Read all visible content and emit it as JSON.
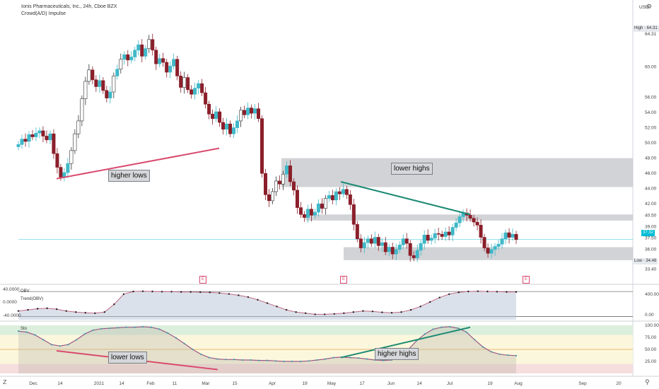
{
  "header": {
    "title": "Ionis Pharmaceuticals, Inc., 24h, Cboe BZX",
    "indicator": "Crowd(A/D) Impulse",
    "currency": "USD"
  },
  "price_tags": {
    "high": "High · 64.31",
    "last": "37.32",
    "low": "Low · 34.48"
  },
  "annotations": {
    "price_higher_lows": "higher lows",
    "price_lower_highs": "lower highs",
    "sto_lower_lows": "lower lows",
    "sto_higher_highs": "higher highs"
  },
  "panes": {
    "obv_label": "OBV",
    "obv_trend_label": "Trend(OBV)",
    "sto_label": "Sto"
  },
  "event_flags": [
    "E",
    "E",
    "E"
  ],
  "icons": {
    "settings": "gear-icon",
    "scale_toggle": "axis-scale-icon",
    "zoom": "magnifier-icon"
  },
  "colors": {
    "up": "#3fb8c8",
    "down": "#8a1f2a",
    "neutral_up": "#ffffff",
    "zone": "#c9cbcf",
    "pink_line": "#d94a6e",
    "teal_line": "#1c8a73",
    "last_price": "#00bcd4",
    "sto_green_band": "#dcefdc",
    "sto_yellow_band": "#fbf7dd",
    "sto_red_band": "#f7dede"
  },
  "chart_data": [
    {
      "type": "candlestick",
      "title": "Ionis Pharmaceuticals, Inc., 24h, Cboe BZX",
      "ylabel": "USD",
      "ylim": [
        33.0,
        66.0
      ],
      "yticks": [
        "64.31",
        "60.00",
        "56.00",
        "54.00",
        "52.00",
        "50.00",
        "48.00",
        "46.00",
        "44.00",
        "42.00",
        "40.50",
        "39.00",
        "37.50",
        "36.00",
        "33.40"
      ],
      "x_ticks": [
        "Dec",
        "14",
        "2021",
        "14",
        "Feb",
        "11",
        "Mar",
        "15",
        "Apr",
        "19",
        "May",
        "17",
        "Jun",
        "14",
        "Jul",
        "19",
        "Aug",
        "Sep",
        "20"
      ],
      "closes": [
        49.8,
        50.5,
        50.2,
        51.1,
        50.8,
        51.3,
        51.6,
        50.9,
        50.4,
        51.2,
        48.6,
        46.8,
        45.5,
        46.1,
        47.3,
        49.0,
        51.2,
        52.9,
        55.8,
        58.1,
        59.6,
        58.3,
        57.4,
        58.2,
        56.9,
        55.9,
        56.7,
        58.8,
        59.7,
        61.0,
        61.6,
        60.9,
        61.3,
        62.2,
        62.9,
        61.4,
        62.4,
        63.6,
        62.2,
        60.4,
        61.1,
        60.6,
        59.3,
        60.1,
        61.0,
        58.8,
        57.3,
        58.6,
        57.0,
        56.4,
        57.2,
        57.8,
        56.6,
        55.1,
        53.8,
        53.2,
        54.1,
        52.7,
        51.8,
        52.5,
        51.2,
        52.0,
        52.9,
        54.3,
        53.7,
        54.6,
        53.9,
        54.5,
        53.2,
        46.0,
        43.2,
        42.4,
        43.6,
        45.0,
        44.6,
        45.9,
        47.0,
        44.9,
        43.8,
        41.5,
        40.6,
        40.2,
        41.3,
        40.5,
        40.9,
        42.0,
        41.4,
        42.7,
        43.1,
        42.5,
        43.6,
        43.3,
        43.9,
        43.2,
        41.9,
        39.3,
        37.4,
        36.2,
        36.9,
        37.4,
        36.8,
        37.6,
        36.5,
        36.9,
        35.7,
        36.3,
        35.4,
        36.0,
        36.6,
        37.4,
        36.8,
        35.2,
        34.9,
        35.9,
        36.8,
        37.9,
        37.2,
        37.5,
        38.1,
        38.0,
        37.7,
        38.3,
        37.9,
        38.9,
        39.5,
        40.3,
        40.8,
        40.5,
        40.1,
        39.6,
        39.2,
        37.6,
        36.2,
        35.5,
        36.0,
        36.4,
        36.7,
        37.4,
        38.2,
        37.6,
        38.0,
        37.3
      ]
    },
    {
      "type": "line",
      "title": "OBV",
      "series": [
        {
          "name": "Trend(OBV)",
          "values": [
            0.1,
            0.15,
            0.2,
            0.22,
            0.18,
            0.1,
            0.05,
            0.02,
            0.0,
            0.05,
            0.4,
            0.85,
            0.97,
            0.98,
            0.97,
            0.96,
            0.96,
            0.95,
            0.95,
            0.94,
            0.93,
            0.9,
            0.86,
            0.8,
            0.72,
            0.6,
            0.45,
            0.3,
            0.15,
            0.05,
            0.0,
            -0.05,
            -0.05,
            -0.03,
            0.0,
            0.05,
            0.1,
            0.08,
            0.04,
            0.02,
            0.05,
            0.15,
            0.3,
            0.5,
            0.7,
            0.85,
            0.93,
            0.97,
            0.98,
            0.97,
            0.96,
            0.95,
            0.95
          ]
        }
      ],
      "yticks": [
        "400.00",
        "0.00"
      ],
      "left_ticks": [
        "40.0000",
        "0.0000",
        "-40.0000"
      ]
    },
    {
      "type": "line",
      "title": "Sto",
      "series": [
        {
          "name": "Sto",
          "values": [
            88,
            86,
            80,
            70,
            60,
            57,
            60,
            70,
            82,
            90,
            93,
            94,
            95,
            96,
            96,
            97,
            96,
            92,
            84,
            74,
            62,
            50,
            40,
            33,
            30,
            29,
            29,
            28,
            28,
            27,
            27,
            26,
            25,
            25,
            25,
            26,
            28,
            30,
            33,
            34,
            33,
            32,
            30,
            28,
            27,
            28,
            34,
            50,
            68,
            82,
            92,
            96,
            97,
            94,
            86,
            70,
            55,
            45,
            40,
            38,
            37
          ]
        }
      ],
      "ylim": [
        0,
        100
      ],
      "yticks": [
        "100.00",
        "75.00",
        "50.00",
        "25.00"
      ]
    }
  ]
}
